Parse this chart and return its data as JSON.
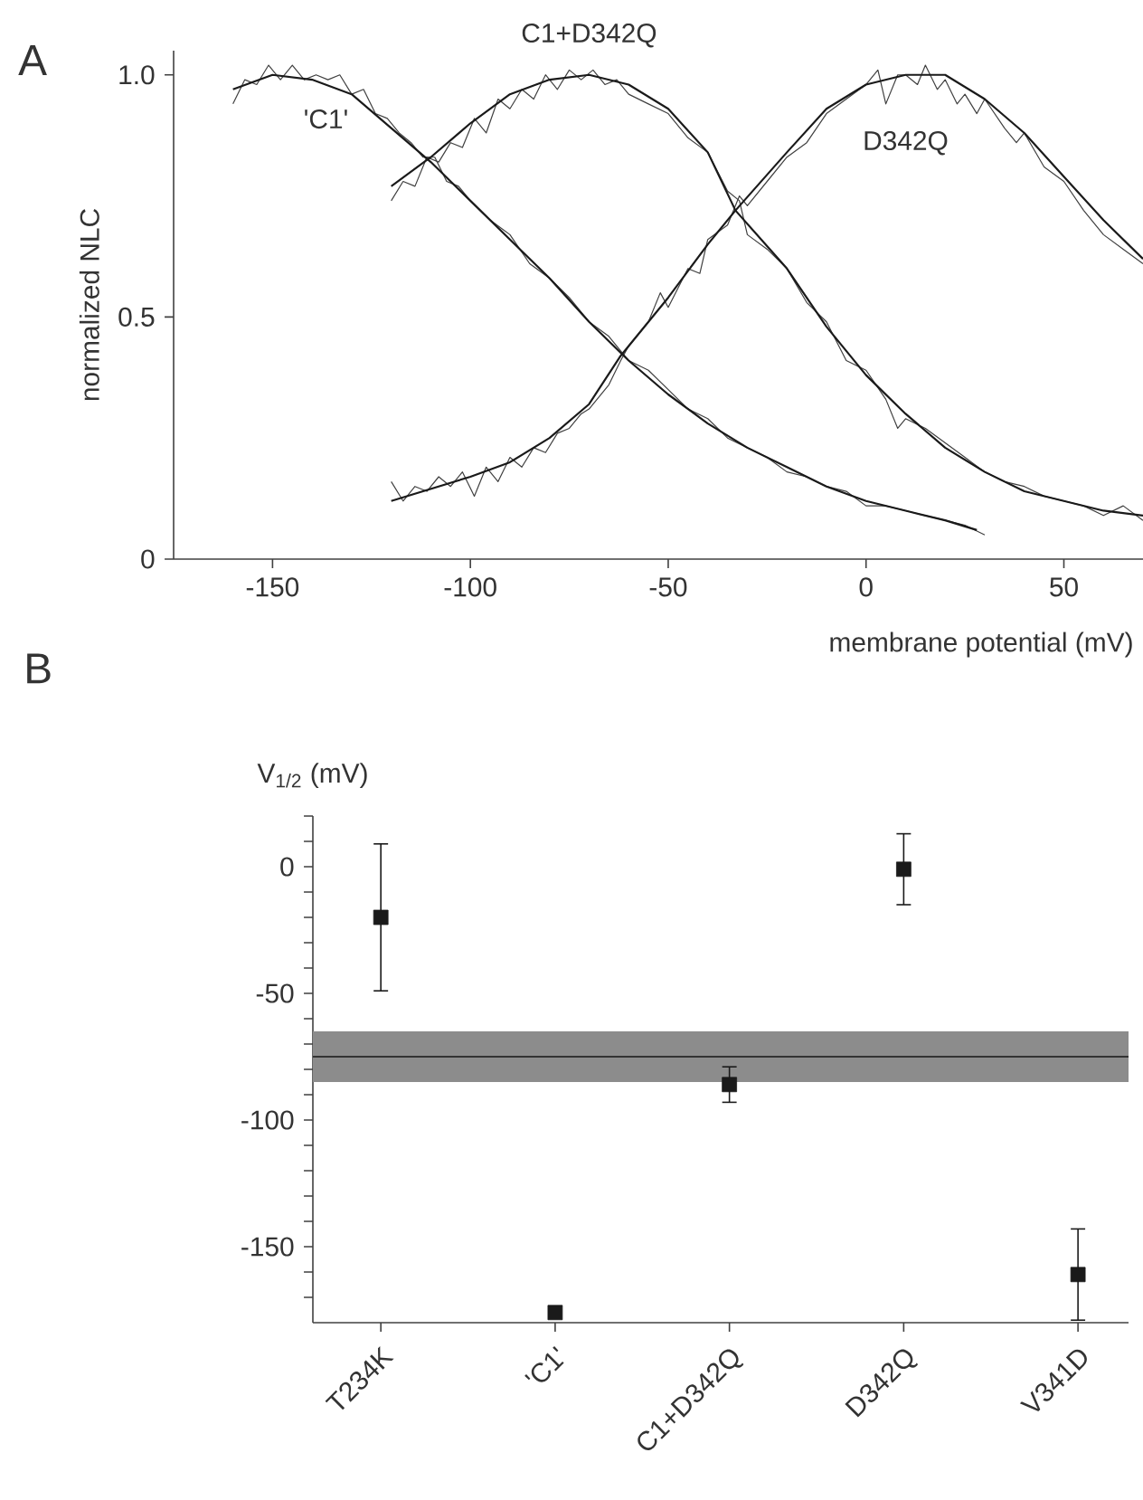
{
  "chart_data": [
    {
      "type": "line",
      "title": "A",
      "xlabel": "membrane potential (mV)",
      "ylabel": "normalized NLC",
      "xlim": [
        -175,
        70
      ],
      "ylim": [
        0,
        1.05
      ],
      "xticks": [
        -150,
        -100,
        -50,
        0,
        50
      ],
      "yticks": [
        0,
        {
          "value": 0.5,
          "label": "0.5"
        },
        {
          "value": 1,
          "label": "1.0"
        }
      ],
      "series": [
        {
          "color": "#404040",
          "x": [
            -160,
            -157,
            -154,
            -151,
            -148,
            -145,
            -142,
            -139,
            -136,
            -133,
            -130,
            -127,
            -124,
            -121,
            -118,
            -115,
            -112,
            -109,
            -106,
            -103,
            -100,
            -95,
            -90,
            -85,
            -80,
            -75,
            -70,
            -65,
            -60,
            -55,
            -50,
            -45,
            -40,
            -35,
            -30,
            -25,
            -20,
            -15,
            -10,
            -5,
            0,
            5,
            10,
            15,
            20,
            25,
            30
          ],
          "values": [
            0.94,
            0.99,
            0.98,
            1.02,
            0.99,
            1.02,
            0.99,
            1.0,
            0.99,
            1.0,
            0.96,
            0.97,
            0.92,
            0.91,
            0.88,
            0.86,
            0.83,
            0.83,
            0.78,
            0.77,
            0.74,
            0.7,
            0.67,
            0.61,
            0.58,
            0.54,
            0.49,
            0.46,
            0.41,
            0.39,
            0.35,
            0.31,
            0.29,
            0.25,
            0.23,
            0.21,
            0.18,
            0.17,
            0.15,
            0.14,
            0.11,
            0.11,
            0.1,
            0.09,
            0.08,
            0.07,
            0.05
          ]
        },
        {
          "color": "#404040",
          "x": [
            -120,
            -117,
            -114,
            -111,
            -108,
            -105,
            -102,
            -99,
            -96,
            -93,
            -90,
            -87,
            -84,
            -81,
            -78,
            -75,
            -72,
            -69,
            -66,
            -63,
            -60,
            -55,
            -50,
            -45,
            -40,
            -35,
            -32,
            -30,
            -25,
            -20,
            -15,
            -10,
            -5,
            0,
            5,
            8,
            10,
            15,
            20,
            25,
            30,
            35,
            40,
            45,
            50,
            55,
            60,
            65,
            70
          ],
          "values": [
            0.74,
            0.78,
            0.77,
            0.83,
            0.82,
            0.86,
            0.85,
            0.91,
            0.88,
            0.95,
            0.93,
            0.97,
            0.95,
            1.0,
            0.97,
            1.01,
            0.99,
            1.01,
            0.98,
            0.99,
            0.96,
            0.94,
            0.92,
            0.87,
            0.84,
            0.76,
            0.74,
            0.67,
            0.64,
            0.6,
            0.53,
            0.49,
            0.41,
            0.39,
            0.33,
            0.27,
            0.29,
            0.27,
            0.24,
            0.21,
            0.18,
            0.16,
            0.15,
            0.13,
            0.12,
            0.11,
            0.09,
            0.11,
            0.08
          ]
        },
        {
          "color": "#404040",
          "x": [
            -120,
            -117,
            -114,
            -111,
            -108,
            -105,
            -102,
            -99,
            -96,
            -93,
            -90,
            -87,
            -84,
            -81,
            -78,
            -75,
            -72,
            -70,
            -65,
            -62,
            -60,
            -55,
            -52,
            -50,
            -45,
            -42,
            -40,
            -35,
            -32,
            -30,
            -25,
            -20,
            -15,
            -10,
            -5,
            0,
            3,
            5,
            8,
            10,
            13,
            15,
            18,
            20,
            23,
            25,
            28,
            30,
            35,
            38,
            40,
            45,
            50,
            55,
            60,
            65,
            70
          ],
          "values": [
            0.16,
            0.12,
            0.15,
            0.14,
            0.17,
            0.15,
            0.18,
            0.13,
            0.19,
            0.16,
            0.21,
            0.19,
            0.23,
            0.22,
            0.26,
            0.27,
            0.3,
            0.31,
            0.36,
            0.41,
            0.44,
            0.49,
            0.55,
            0.52,
            0.6,
            0.59,
            0.66,
            0.69,
            0.75,
            0.73,
            0.78,
            0.83,
            0.86,
            0.92,
            0.95,
            0.98,
            1.01,
            0.94,
            1.0,
            1.0,
            0.98,
            1.02,
            0.97,
            0.99,
            0.94,
            0.96,
            0.92,
            0.95,
            0.89,
            0.86,
            0.88,
            0.81,
            0.78,
            0.72,
            0.67,
            0.64,
            0.61
          ]
        },
        {
          "name": "'C1'",
          "color": "#1a1a1a",
          "x": [
            -160,
            -150,
            -140,
            -130,
            -120,
            -110,
            -100,
            -90,
            -80,
            -70,
            -60,
            -50,
            -40,
            -30,
            -20,
            -10,
            0,
            10,
            20,
            28
          ],
          "values": [
            0.97,
            1.0,
            0.99,
            0.96,
            0.89,
            0.82,
            0.74,
            0.66,
            0.58,
            0.49,
            0.41,
            0.34,
            0.28,
            0.23,
            0.19,
            0.15,
            0.12,
            0.1,
            0.08,
            0.06
          ]
        },
        {
          "name": "C1+D342Q",
          "color": "#1a1a1a",
          "x": [
            -120,
            -110,
            -100,
            -90,
            -80,
            -70,
            -60,
            -50,
            -40,
            -33,
            -20,
            -10,
            0,
            10,
            20,
            30,
            40,
            50,
            60,
            70
          ],
          "values": [
            0.77,
            0.83,
            0.9,
            0.96,
            0.99,
            1.0,
            0.98,
            0.93,
            0.84,
            0.72,
            0.6,
            0.48,
            0.38,
            0.3,
            0.23,
            0.18,
            0.14,
            0.12,
            0.1,
            0.09
          ]
        },
        {
          "name": "D342Q",
          "color": "#1a1a1a",
          "x": [
            -120,
            -100,
            -90,
            -80,
            -70,
            -62,
            -50,
            -40,
            -33,
            -20,
            -10,
            0,
            10,
            20,
            30,
            40,
            50,
            60,
            70
          ],
          "values": [
            0.12,
            0.17,
            0.2,
            0.25,
            0.32,
            0.42,
            0.54,
            0.65,
            0.72,
            0.84,
            0.93,
            0.98,
            1.0,
            1.0,
            0.95,
            0.88,
            0.79,
            0.7,
            0.62
          ]
        }
      ]
    },
    {
      "type": "scatter",
      "title": "B",
      "ylabel": "V$_{1/2}$ (mV)",
      "categories": [
        "T234K",
        "'C1'",
        "C1+D342Q",
        "D342Q",
        "V341D"
      ],
      "ylim": [
        -180,
        20
      ],
      "yticks": [
        {
          "value": 20,
          "label": null
        },
        {
          "value": 10,
          "label": null
        },
        0,
        {
          "value": -10,
          "label": null
        },
        {
          "value": -20,
          "label": null
        },
        {
          "value": -30,
          "label": null
        },
        {
          "value": -40,
          "label": null
        },
        -50,
        {
          "value": -60,
          "label": null
        },
        {
          "value": -70,
          "label": null
        },
        {
          "value": -80,
          "label": null
        },
        {
          "value": -90,
          "label": null
        },
        -100,
        {
          "value": -110,
          "label": null
        },
        {
          "value": -120,
          "label": null
        },
        {
          "value": -130,
          "label": null
        },
        {
          "value": -140,
          "label": null
        },
        -150,
        {
          "value": -160,
          "label": null
        },
        {
          "value": -170,
          "label": null
        }
      ],
      "marker": "square",
      "series": [
        {
          "color": "#1a1a1a",
          "values": [
            -20,
            -176,
            -86,
            -1,
            -161
          ],
          "errors": [
            29,
            null,
            7,
            14,
            18
          ]
        }
      ],
      "ref_lines": [
        {
          "axis": "y",
          "value": -75,
          "color": "#333333"
        }
      ],
      "bands": [
        {
          "axis": "y",
          "from": -85,
          "to": -65,
          "color": "#8c8c8c"
        }
      ]
    }
  ]
}
